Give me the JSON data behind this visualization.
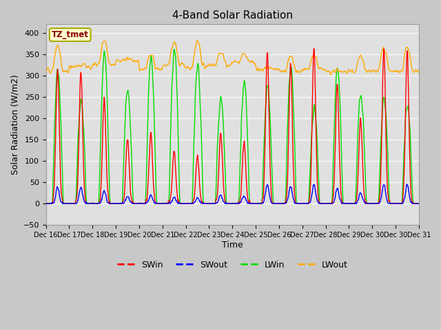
{
  "title": "4-Band Solar Radiation",
  "xlabel": "Time",
  "ylabel": "Solar Radiation (W/m2)",
  "ylim": [
    -50,
    420
  ],
  "n_days": 16,
  "x_tick_labels": [
    "Dec 16",
    "Dec 17",
    "Dec 18",
    "Dec 19",
    "Dec 20",
    "Dec 21",
    "Dec 22",
    "Dec 23",
    "Dec 24",
    "Dec 25",
    "Dec 26",
    "Dec 27",
    "Dec 28",
    "Dec 29",
    "Dec 30",
    "Dec 30",
    "Dec 31"
  ],
  "annotation_text": "TZ_tmet",
  "annotation_bg": "#ffffcc",
  "annotation_border_color": "#aaaa00",
  "annotation_text_color": "#880000",
  "plot_bg_color": "#e0e0e0",
  "fig_bg_color": "#c8c8c8",
  "SWin_color": "#ff0000",
  "SWout_color": "#0000ff",
  "LWin_color": "#00dd00",
  "LWout_color": "#ffaa00",
  "line_width": 1.0,
  "figsize": [
    6.4,
    4.8
  ],
  "dpi": 100,
  "SWin_peaks": [
    315,
    310,
    245,
    150,
    165,
    125,
    110,
    165,
    145,
    355,
    325,
    365,
    280,
    200,
    360,
    355
  ],
  "SWout_peaks": [
    38,
    38,
    30,
    18,
    20,
    15,
    13,
    20,
    17,
    45,
    40,
    45,
    35,
    25,
    46,
    44
  ],
  "LWout_day_base": [
    370,
    325,
    385,
    340,
    350,
    380,
    380,
    355,
    350,
    320,
    350,
    345,
    310,
    350,
    365,
    365
  ],
  "LWout_night_base": [
    310,
    320,
    325,
    335,
    315,
    325,
    320,
    325,
    330,
    315,
    310,
    315,
    310,
    310,
    310,
    310
  ],
  "LWin_peaks": [
    310,
    240,
    350,
    265,
    345,
    360,
    325,
    245,
    280,
    275,
    320,
    225,
    310,
    255,
    250,
    230
  ]
}
